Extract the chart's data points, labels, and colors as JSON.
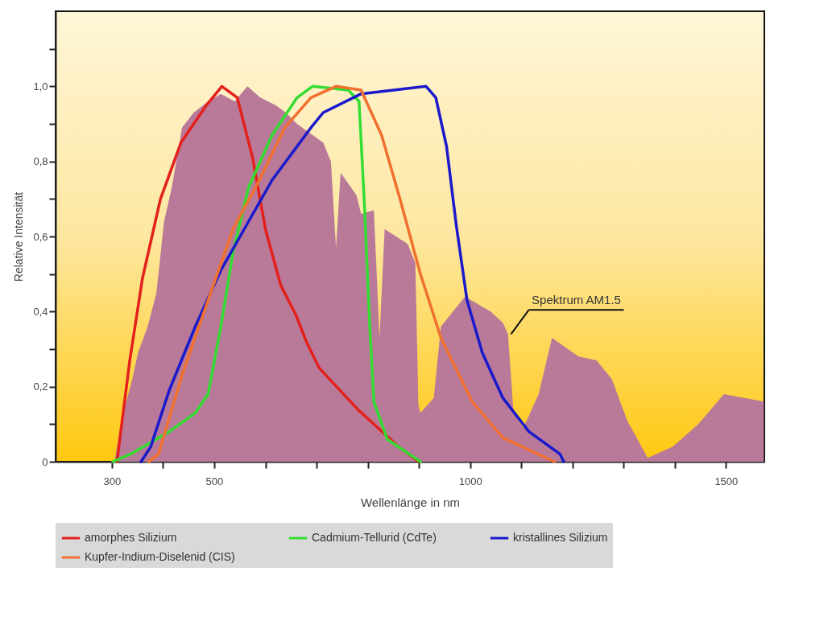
{
  "chart_data": {
    "type": "line",
    "xlabel": "Wellenlänge in nm",
    "ylabel": "Relative Intensität",
    "xlim": [
      190,
      1575
    ],
    "ylim": [
      0,
      1.2
    ],
    "xticks": [
      300,
      {
        "value": 400,
        "label": null
      },
      500,
      {
        "value": 600,
        "label": null
      },
      {
        "value": 700,
        "label": null
      },
      {
        "value": 800,
        "label": null
      },
      {
        "value": 900,
        "label": null
      },
      1000,
      {
        "value": 1100,
        "label": null
      },
      {
        "value": 1200,
        "label": null
      },
      {
        "value": 1300,
        "label": null
      },
      {
        "value": 1400,
        "label": null
      },
      1500
    ],
    "yticks": [
      0,
      {
        "value": 0.1,
        "label": null
      },
      {
        "value": 0.2,
        "label": "0,2"
      },
      {
        "value": 0.3,
        "label": null
      },
      {
        "value": 0.4,
        "label": "0,4"
      },
      {
        "value": 0.5,
        "label": null
      },
      {
        "value": 0.6,
        "label": "0,6"
      },
      {
        "value": 0.7,
        "label": null
      },
      {
        "value": 0.8,
        "label": "0,8"
      },
      {
        "value": 0.9,
        "label": null
      },
      {
        "value": 1.0,
        "label": "1,0"
      },
      {
        "value": 1.1,
        "label": null
      }
    ],
    "legend": "bottom",
    "annotations": [
      {
        "text": "Spektrum AM1.5",
        "x": 1080,
        "y": 0.34
      }
    ],
    "series": [
      {
        "type": "area",
        "color": "#b97a99",
        "x": [
          305,
          320,
          340,
          351,
          370,
          387,
          395,
          402,
          417,
          437,
          460,
          488,
          513,
          540,
          565,
          590,
          620,
          640,
          662,
          682,
          713,
          728,
          738,
          747,
          778,
          787,
          812,
          823,
          833,
          878,
          893,
          899,
          903,
          929,
          943,
          990,
          1040,
          1064,
          1074,
          1085,
          1104,
          1134,
          1160,
          1212,
          1247,
          1277,
          1307,
          1347,
          1396,
          1446,
          1496,
          1574
        ],
        "values": [
          0,
          0.12,
          0.22,
          0.29,
          0.36,
          0.45,
          0.55,
          0.64,
          0.73,
          0.89,
          0.93,
          0.96,
          0.98,
          0.96,
          1.0,
          0.97,
          0.95,
          0.93,
          0.9,
          0.88,
          0.85,
          0.8,
          0.57,
          0.77,
          0.71,
          0.66,
          0.67,
          0.33,
          0.62,
          0.58,
          0.53,
          0.15,
          0.13,
          0.17,
          0.36,
          0.44,
          0.4,
          0.37,
          0.34,
          0.13,
          0.09,
          0.18,
          0.33,
          0.28,
          0.27,
          0.22,
          0.11,
          0.01,
          0.04,
          0.1,
          0.18,
          0.16
        ]
      },
      {
        "name": "amorphes Silizium",
        "color": "#e3201b",
        "x": [
          310,
          335,
          360,
          395,
          435,
          485,
          515,
          545,
          575,
          600,
          630,
          660,
          680,
          705,
          780,
          860,
          900
        ],
        "values": [
          0,
          0.27,
          0.49,
          0.7,
          0.85,
          0.95,
          1.0,
          0.97,
          0.81,
          0.62,
          0.47,
          0.39,
          0.32,
          0.25,
          0.14,
          0.04,
          0
        ]
      },
      {
        "name": "Cadmium-Tellurid (CdTe)",
        "color": "#33dd33",
        "x": [
          302,
          336,
          412,
          463,
          488,
          513,
          537,
          567,
          613,
          662,
          692,
          762,
          783,
          793,
          804,
          812,
          838,
          903
        ],
        "values": [
          0,
          0.02,
          0.08,
          0.13,
          0.18,
          0.36,
          0.56,
          0.73,
          0.87,
          0.97,
          1.0,
          0.99,
          0.96,
          0.7,
          0.36,
          0.16,
          0.06,
          0
        ]
      },
      {
        "name": "kristallines Silizium",
        "color": "#1a1acc",
        "x": [
          357,
          376,
          412,
          463,
          513,
          563,
          613,
          689,
          713,
          787,
          914,
          933,
          954,
          973,
          994,
          1024,
          1064,
          1115,
          1176,
          1183
        ],
        "values": [
          0,
          0.04,
          0.19,
          0.36,
          0.51,
          0.63,
          0.75,
          0.89,
          0.93,
          0.98,
          1.0,
          0.97,
          0.84,
          0.63,
          0.43,
          0.29,
          0.17,
          0.08,
          0.02,
          0
        ]
      },
      {
        "name": "Kupfer-Indium-Diselenid (CIS)",
        "color": "#f07030",
        "x": [
          372,
          391,
          437,
          488,
          537,
          588,
          638,
          689,
          738,
          787,
          827,
          863,
          903,
          943,
          1004,
          1064,
          1165
        ],
        "values": [
          0,
          0.02,
          0.23,
          0.43,
          0.62,
          0.75,
          0.89,
          0.97,
          1.0,
          0.99,
          0.87,
          0.7,
          0.5,
          0.33,
          0.16,
          0.064,
          0
        ]
      }
    ]
  }
}
